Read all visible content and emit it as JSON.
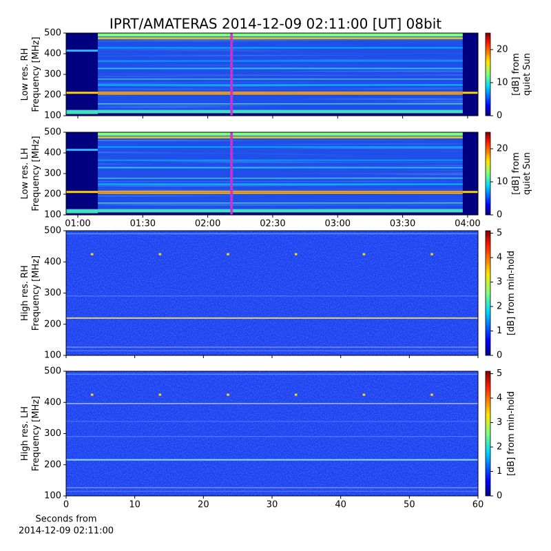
{
  "title": "IPRT/AMATERAS 2014-12-09 02:11:00 [UT]   08bit",
  "chart_data": [
    {
      "type": "heatmap",
      "ylabel": [
        "Low res. RH",
        "Frequency [MHz]"
      ],
      "ylim": [
        100,
        500
      ],
      "yticks": [
        100,
        200,
        300,
        400,
        500
      ],
      "xlim": [
        54.6,
        244.8
      ],
      "xticks": [
        60,
        90,
        120,
        150,
        180,
        210,
        240
      ],
      "tick_labels": false,
      "marker_x": 131,
      "marker_color": "#cc33cc",
      "colorbar": {
        "label": [
          "[dB] from",
          "quiet Sun"
        ],
        "lim": [
          0,
          25
        ],
        "ticks": [
          0,
          10,
          20
        ]
      }
    },
    {
      "type": "heatmap",
      "ylabel": [
        "Low res. LH",
        "Frequency [MHz]"
      ],
      "ylim": [
        100,
        500
      ],
      "yticks": [
        100,
        200,
        300,
        400,
        500
      ],
      "xlim": [
        54.6,
        244.8
      ],
      "xticks": [
        {
          "value": 60,
          "label": "01:00"
        },
        {
          "value": 90,
          "label": "01:30"
        },
        {
          "value": 120,
          "label": "02:00"
        },
        {
          "value": 150,
          "label": "02:30"
        },
        {
          "value": 180,
          "label": "03:00"
        },
        {
          "value": 210,
          "label": "03:30"
        },
        {
          "value": 240,
          "label": "04:00"
        }
      ],
      "tick_labels": true,
      "marker_x": 131,
      "marker_color": "#cc33cc",
      "colorbar": {
        "label": [
          "[dB] from",
          "quiet Sun"
        ],
        "lim": [
          0,
          25
        ],
        "ticks": [
          0,
          10,
          20
        ]
      }
    },
    {
      "type": "heatmap",
      "ylabel": [
        "High res. RH",
        "Frequency [MHz]"
      ],
      "ylim": [
        100,
        500
      ],
      "yticks": [
        100,
        200,
        300,
        400,
        500
      ],
      "xlim": [
        0,
        60
      ],
      "xticks": [
        0,
        10,
        20,
        30,
        40,
        50,
        60
      ],
      "tick_labels": false,
      "colorbar": {
        "label": [
          "[dB] from min-hold"
        ],
        "lim": [
          0,
          5.1
        ],
        "ticks": [
          0,
          1,
          2,
          3,
          4,
          5
        ]
      }
    },
    {
      "type": "heatmap",
      "ylabel": [
        "High res. LH",
        "Frequency [MHz]"
      ],
      "ylim": [
        100,
        500
      ],
      "yticks": [
        100,
        200,
        300,
        400,
        500
      ],
      "xlim": [
        0,
        60
      ],
      "xticks": [
        0,
        10,
        20,
        30,
        40,
        50,
        60
      ],
      "tick_labels": true,
      "xlabel": [
        "Seconds from",
        "2014-12-09 02:11:00"
      ],
      "colorbar": {
        "label": [
          "[dB] from min-hold"
        ],
        "lim": [
          0,
          5.1
        ],
        "ticks": [
          0,
          1,
          2,
          3,
          4,
          5
        ]
      }
    }
  ]
}
